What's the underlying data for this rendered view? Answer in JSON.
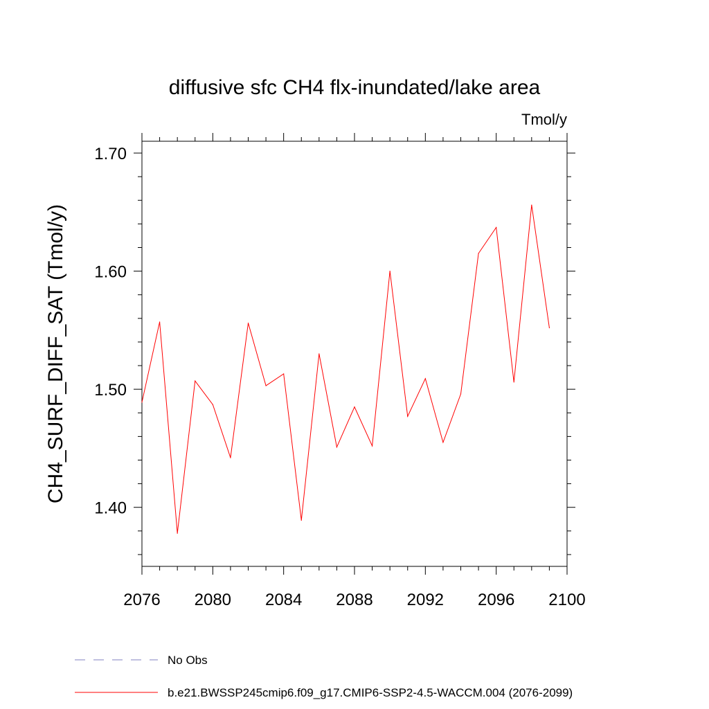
{
  "chart_data": {
    "type": "line",
    "title": "diffusive sfc CH4 flx-inundated/lake area",
    "units": "Tmol/y",
    "xlabel": "",
    "ylabel": "CH4_SURF_DIFF_SAT  (Tmol/y)",
    "xlim": [
      2076,
      2100
    ],
    "ylim": [
      1.35,
      1.71
    ],
    "x_ticks": [
      "2076",
      "2080",
      "2084",
      "2088",
      "2092",
      "2096",
      "2100"
    ],
    "y_ticks": [
      "1.40",
      "1.50",
      "1.60",
      "1.70"
    ],
    "grid": false,
    "legend_placement": "bottom",
    "x": [
      2076,
      2077,
      2078,
      2079,
      2080,
      2081,
      2082,
      2083,
      2084,
      2085,
      2086,
      2087,
      2088,
      2089,
      2090,
      2091,
      2092,
      2093,
      2094,
      2095,
      2096,
      2097,
      2098,
      2099
    ],
    "series": [
      {
        "name": "b.e21.BWSSP245cmip6.f09_g17.CMIP6-SSP2-4.5-WACCM.004 (2076-2099)",
        "color": "#ff0000",
        "values": [
          1.489,
          1.557,
          1.378,
          1.507,
          1.487,
          1.442,
          1.556,
          1.503,
          1.513,
          1.389,
          1.53,
          1.451,
          1.485,
          1.452,
          1.6,
          1.477,
          1.509,
          1.455,
          1.496,
          1.615,
          1.637,
          1.506,
          1.656,
          1.552
        ]
      }
    ],
    "legend": [
      {
        "label": "No Obs",
        "color": "#8080c0",
        "style": "dashed"
      },
      {
        "label": "b.e21.BWSSP245cmip6.f09_g17.CMIP6-SSP2-4.5-WACCM.004 (2076-2099)",
        "color": "#ff0000",
        "style": "solid"
      }
    ]
  }
}
